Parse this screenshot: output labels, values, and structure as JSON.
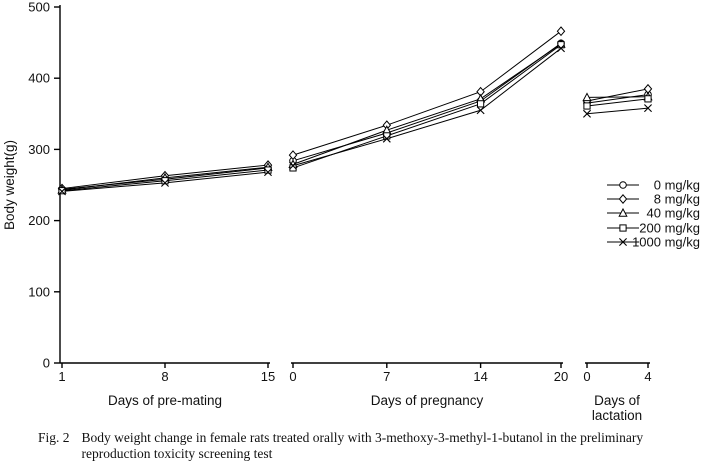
{
  "figure": {
    "caption_label": "Fig. 2",
    "caption_line1": "Body weight change in female rats treated orally with 3-methoxy-3-methyl-1-butanol in the preliminary",
    "caption_line2": "reproduction toxicity screening test"
  },
  "chart_data": {
    "type": "line",
    "title": "",
    "ylabel": "Body weight(g)",
    "ylim": [
      0,
      500
    ],
    "yticks": [
      0,
      100,
      200,
      300,
      400,
      500
    ],
    "grid": false,
    "legend_position": "right",
    "line_color": "#000000",
    "marker_fill": "#ffffff",
    "segments": [
      {
        "xlabel_lines": [
          "Days of pre-mating"
        ],
        "x": [
          1,
          8,
          15
        ]
      },
      {
        "xlabel_lines": [
          "Days of pregnancy"
        ],
        "x": [
          0,
          7,
          14,
          20
        ]
      },
      {
        "xlabel_lines": [
          "Days of",
          "lactation"
        ],
        "x": [
          0,
          4
        ]
      }
    ],
    "series": [
      {
        "name": "0 mg/kg",
        "marker": "circle",
        "values": [
          [
            244,
            258,
            274
          ],
          [
            284,
            323,
            368,
            449
          ],
          [
            365,
            377
          ]
        ]
      },
      {
        "name": "8 mg/kg",
        "marker": "diamond",
        "values": [
          [
            245,
            263,
            278
          ],
          [
            292,
            334,
            381,
            466
          ],
          [
            368,
            385
          ]
        ]
      },
      {
        "name": "40 mg/kg",
        "marker": "triangle",
        "values": [
          [
            243,
            260,
            275
          ],
          [
            279,
            327,
            371,
            448
          ],
          [
            373,
            374
          ]
        ]
      },
      {
        "name": "200 mg/kg",
        "marker": "square",
        "values": [
          [
            242,
            256,
            271
          ],
          [
            274,
            319,
            364,
            447
          ],
          [
            361,
            371
          ]
        ]
      },
      {
        "name": "1000 mg/kg",
        "marker": "x",
        "values": [
          [
            241,
            253,
            268
          ],
          [
            277,
            315,
            355,
            442
          ],
          [
            350,
            358
          ]
        ]
      }
    ]
  }
}
